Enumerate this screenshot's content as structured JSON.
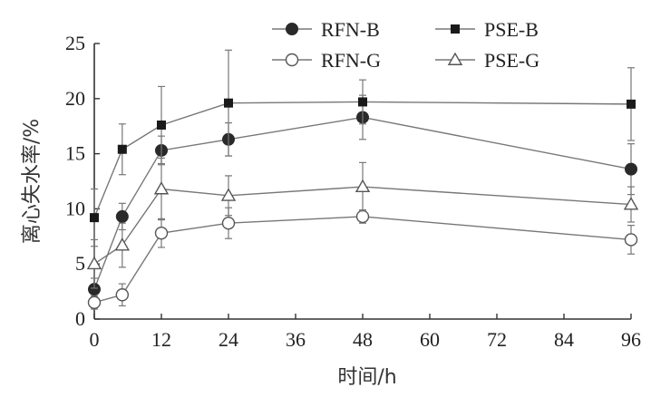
{
  "chart_data": {
    "type": "line",
    "title": "",
    "xlabel": "时间/h",
    "ylabel": "离心失水率/%",
    "x": [
      0,
      5,
      12,
      24,
      48,
      96
    ],
    "xlim": [
      0,
      96
    ],
    "ylim": [
      0,
      25
    ],
    "xticks": [
      "0",
      "12",
      "24",
      "36",
      "48",
      "60",
      "72",
      "84",
      "96"
    ],
    "yticks": [
      "0",
      "5",
      "10",
      "15",
      "20",
      "25"
    ],
    "grid": false,
    "legend_position": "top",
    "series": [
      {
        "name": "RFN-B",
        "marker": "filled-circle",
        "values": [
          2.7,
          9.3,
          15.3,
          16.3,
          18.3,
          13.6
        ],
        "errors": [
          1.0,
          1.2,
          1.3,
          1.5,
          2.0,
          2.3
        ]
      },
      {
        "name": "PSE-B",
        "marker": "filled-square",
        "values": [
          9.2,
          15.4,
          17.6,
          19.6,
          19.7,
          19.5
        ],
        "errors": [
          2.6,
          2.3,
          3.5,
          4.8,
          2.0,
          3.3
        ]
      },
      {
        "name": "RFN-G",
        "marker": "open-circle",
        "values": [
          1.5,
          2.2,
          7.8,
          8.7,
          9.3,
          7.2
        ],
        "errors": [
          0.6,
          1.0,
          1.3,
          1.4,
          0.6,
          1.3
        ]
      },
      {
        "name": "PSE-G",
        "marker": "open-triangle",
        "values": [
          5.0,
          6.7,
          11.8,
          11.2,
          12.0,
          10.4
        ],
        "errors": [
          2.2,
          2.0,
          2.8,
          1.8,
          2.2,
          1.6
        ]
      }
    ]
  }
}
